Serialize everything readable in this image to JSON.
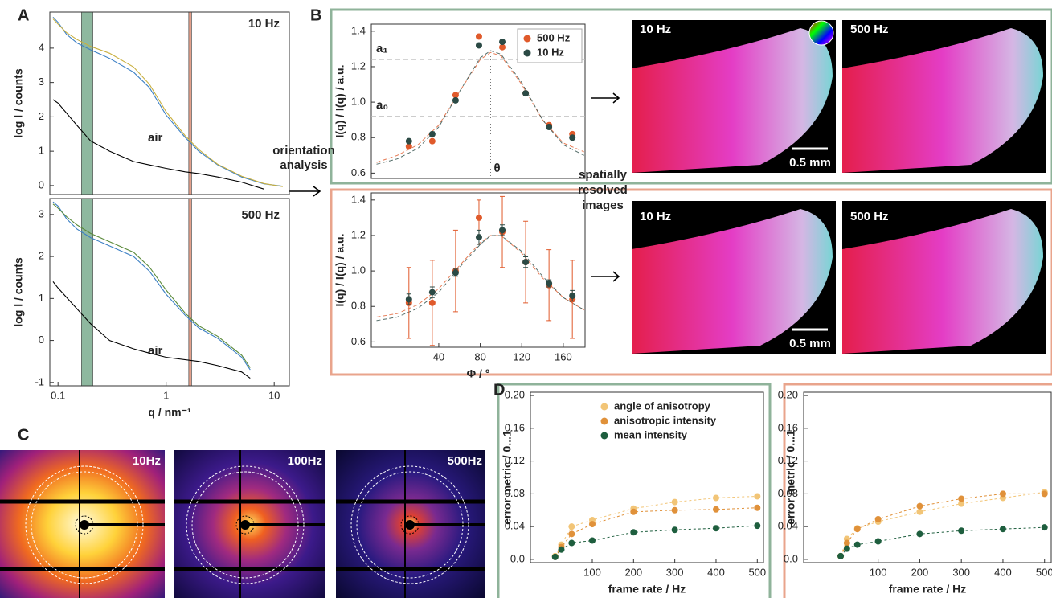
{
  "labels": [
    "A",
    "B",
    "C",
    "D"
  ],
  "panel_a": {
    "top_label": "10 Hz",
    "top_air": "air",
    "bottom_label": "500 Hz",
    "bottom_air": "air"
  },
  "panel_b": {
    "arrow_text": [
      "orientation",
      "analysis"
    ],
    "resolved_text": [
      "spatially",
      "resolved",
      "images"
    ],
    "images": [
      {
        "label": "10 Hz",
        "scale": "0.5 mm"
      },
      {
        "label": "500 Hz"
      },
      {
        "label": "10 Hz",
        "scale": "0.5 mm"
      },
      {
        "label": "500 Hz"
      }
    ]
  },
  "panel_c": {
    "images": [
      "10Hz",
      "100Hz",
      "500Hz"
    ]
  },
  "chart_data": [
    {
      "type": "line",
      "xscale": "log",
      "xlim": [
        0.084,
        13.8
      ],
      "ylim": [
        -0.26,
        5.05
      ],
      "yticks": [
        0,
        1,
        2,
        3,
        4
      ],
      "ylabel": "log I / counts",
      "spans": [
        {
          "range": [
            0.165,
            0.21
          ],
          "color": "#5e9a76"
        },
        {
          "range": [
            1.62,
            1.72
          ],
          "color": "#d9775a"
        }
      ],
      "series": [
        {
          "color": "#3b7fc4",
          "x": [
            0.09,
            0.1,
            0.12,
            0.15,
            0.2,
            0.3,
            0.5,
            0.7,
            1,
            1.5,
            2,
            3,
            5,
            8,
            12
          ],
          "values": [
            4.9,
            4.75,
            4.4,
            4.15,
            3.95,
            3.7,
            3.3,
            2.85,
            2.05,
            1.4,
            1.0,
            0.6,
            0.25,
            0.05,
            -0.02
          ]
        },
        {
          "color": "#c9b040",
          "x": [
            0.09,
            0.1,
            0.12,
            0.15,
            0.2,
            0.3,
            0.5,
            0.7,
            1,
            1.5,
            2,
            3,
            5,
            8,
            12
          ],
          "values": [
            4.85,
            4.7,
            4.45,
            4.25,
            4.05,
            3.85,
            3.45,
            2.95,
            2.15,
            1.45,
            1.05,
            0.62,
            0.27,
            0.06,
            -0.03
          ]
        },
        {
          "color": "#000000",
          "x": [
            0.09,
            0.1,
            0.15,
            0.2,
            0.3,
            0.5,
            0.7,
            1,
            1.5,
            2,
            3,
            5,
            8
          ],
          "values": [
            2.5,
            2.4,
            1.75,
            1.3,
            1.0,
            0.7,
            0.6,
            0.5,
            0.4,
            0.35,
            0.25,
            0.1,
            -0.1
          ]
        }
      ]
    },
    {
      "type": "line",
      "xscale": "log",
      "xlim": [
        0.084,
        13.8
      ],
      "ylim": [
        -1.08,
        3.38
      ],
      "yticks": [
        -1,
        0,
        1,
        2,
        3
      ],
      "xticks": [
        0.1,
        1,
        10
      ],
      "xlabel": "q / nm⁻¹",
      "ylabel": "log I / counts",
      "spans": [
        {
          "range": [
            0.165,
            0.21
          ],
          "color": "#5e9a76"
        },
        {
          "range": [
            1.62,
            1.72
          ],
          "color": "#d9775a"
        }
      ],
      "series": [
        {
          "color": "#3b7fc4",
          "x": [
            0.09,
            0.1,
            0.12,
            0.15,
            0.2,
            0.3,
            0.5,
            0.7,
            1,
            1.5,
            2,
            3,
            5,
            6
          ],
          "values": [
            3.3,
            3.2,
            2.9,
            2.65,
            2.45,
            2.25,
            2.0,
            1.65,
            1.1,
            0.6,
            0.3,
            0.05,
            -0.4,
            -0.7
          ]
        },
        {
          "color": "#5a8a3a",
          "x": [
            0.09,
            0.1,
            0.12,
            0.15,
            0.2,
            0.3,
            0.5,
            0.7,
            1,
            1.5,
            2,
            3,
            5,
            6
          ],
          "values": [
            3.25,
            3.15,
            2.95,
            2.75,
            2.55,
            2.35,
            2.1,
            1.75,
            1.2,
            0.65,
            0.35,
            0.1,
            -0.35,
            -0.65
          ]
        },
        {
          "color": "#000000",
          "x": [
            0.09,
            0.1,
            0.15,
            0.2,
            0.3,
            0.5,
            0.7,
            1,
            2,
            3,
            5,
            6
          ],
          "values": [
            1.4,
            1.25,
            0.75,
            0.4,
            0.0,
            -0.2,
            -0.3,
            -0.4,
            -0.5,
            -0.6,
            -0.75,
            -0.9
          ]
        }
      ]
    },
    {
      "type": "scatter",
      "xlim": [
        -25,
        181
      ],
      "ylim": [
        0.57,
        1.44
      ],
      "yticks": [
        0.6,
        0.8,
        {
          "value": 1,
          "label": "1.0"
        },
        1.2,
        1.4
      ],
      "ylabel": "I(q) / I(q) / a.u.",
      "legend": "upper right",
      "hlines": [
        {
          "value": 1.24,
          "label": "a₁"
        },
        {
          "value": 0.92,
          "label": "a₀"
        }
      ],
      "vlines": [
        {
          "value": 90,
          "label": "θ"
        }
      ],
      "series": [
        {
          "name": "500 Hz",
          "color": "#e05a2b",
          "x": [
            11.25,
            33.75,
            56.25,
            78.75,
            101.25,
            123.75,
            146.25,
            168.75
          ],
          "values": [
            0.75,
            0.78,
            1.04,
            1.37,
            1.31,
            1.05,
            0.87,
            0.82
          ],
          "errors": [
            0.01,
            0.01,
            0.01,
            0.01,
            0.01,
            0.01,
            0.01,
            0.01
          ]
        },
        {
          "name": "10 Hz",
          "color": "#2b4a45",
          "x": [
            11.25,
            33.75,
            56.25,
            78.75,
            101.25,
            123.75,
            146.25,
            168.75
          ],
          "values": [
            0.78,
            0.82,
            1.01,
            1.32,
            1.34,
            1.05,
            0.86,
            0.8
          ],
          "errors": [
            0.01,
            0.01,
            0.01,
            0.01,
            0.01,
            0.01,
            0.01,
            0.01
          ]
        }
      ],
      "fits": [
        {
          "color": "#e05a2b",
          "x": [
            -20,
            0,
            20,
            40,
            60,
            80,
            90,
            100,
            120,
            140,
            160,
            180
          ],
          "values": [
            0.66,
            0.7,
            0.76,
            0.87,
            1.06,
            1.24,
            1.28,
            1.26,
            1.1,
            0.9,
            0.77,
            0.72
          ]
        },
        {
          "color": "#2b4a45",
          "x": [
            -20,
            0,
            20,
            40,
            60,
            80,
            90,
            100,
            120,
            140,
            160,
            180
          ],
          "values": [
            0.65,
            0.68,
            0.74,
            0.86,
            1.06,
            1.25,
            1.29,
            1.27,
            1.11,
            0.9,
            0.76,
            0.7
          ]
        }
      ]
    },
    {
      "type": "scatter",
      "xlim": [
        -25,
        181
      ],
      "ylim": [
        0.57,
        1.44
      ],
      "yticks": [
        0.6,
        0.8,
        {
          "value": 1,
          "label": "1.0"
        },
        1.2,
        1.4
      ],
      "xticks": [
        40,
        80,
        120,
        160
      ],
      "xlabel": "Φ / °",
      "ylabel": "I(q) / I(q) / a.u.",
      "series": [
        {
          "color": "#e05a2b",
          "x": [
            11.25,
            33.75,
            56.25,
            78.75,
            101.25,
            123.75,
            146.25,
            168.75
          ],
          "values": [
            0.82,
            0.82,
            1.0,
            1.3,
            1.22,
            1.05,
            0.92,
            0.84
          ],
          "errors": [
            0.2,
            0.24,
            0.23,
            0.1,
            0.2,
            0.23,
            0.2,
            0.22
          ]
        },
        {
          "color": "#2b4a45",
          "x": [
            11.25,
            33.75,
            56.25,
            78.75,
            101.25,
            123.75,
            146.25,
            168.75
          ],
          "values": [
            0.84,
            0.88,
            0.99,
            1.19,
            1.23,
            1.05,
            0.93,
            0.86
          ],
          "errors": [
            0.03,
            0.03,
            0.02,
            0.04,
            0.03,
            0.03,
            0.02,
            0.03
          ]
        }
      ],
      "fits": [
        {
          "color": "#e05a2b",
          "x": [
            -20,
            0,
            20,
            40,
            60,
            80,
            90,
            100,
            120,
            140,
            160,
            180
          ],
          "values": [
            0.74,
            0.76,
            0.81,
            0.9,
            1.03,
            1.16,
            1.2,
            1.2,
            1.1,
            0.96,
            0.85,
            0.78
          ]
        },
        {
          "color": "#2b4a45",
          "x": [
            -20,
            0,
            20,
            40,
            60,
            80,
            90,
            100,
            120,
            140,
            160,
            180
          ],
          "values": [
            0.72,
            0.74,
            0.79,
            0.88,
            1.02,
            1.15,
            1.2,
            1.2,
            1.11,
            0.97,
            0.85,
            0.78
          ]
        }
      ]
    },
    {
      "type": "scatter",
      "connect": true,
      "xlim": [
        -50,
        515
      ],
      "ylim": [
        -0.004,
        0.204
      ],
      "yticks": [
        {
          "value": 0,
          "label": "0.0"
        },
        0.04,
        0.08,
        0.12,
        0.16,
        {
          "value": 0.2,
          "label": "0.20"
        }
      ],
      "xticks": [
        100,
        200,
        300,
        400,
        500
      ],
      "xlabel": "frame rate / Hz",
      "ylabel": "error metric / 0...1",
      "legend": "upper center",
      "series": [
        {
          "name": "angle of anisotropy",
          "color": "#f2c577",
          "x": [
            10,
            25,
            50,
            100,
            200,
            300,
            400,
            500
          ],
          "values": [
            0.004,
            0.018,
            0.04,
            0.048,
            0.062,
            0.07,
            0.075,
            0.077
          ]
        },
        {
          "name": "anisotropic intensity",
          "color": "#e0913a",
          "x": [
            10,
            25,
            50,
            100,
            200,
            300,
            400,
            500
          ],
          "values": [
            0.003,
            0.015,
            0.031,
            0.043,
            0.058,
            0.06,
            0.061,
            0.063
          ]
        },
        {
          "name": "mean intensity",
          "color": "#1e5e3e",
          "x": [
            10,
            25,
            50,
            100,
            200,
            300,
            400,
            500
          ],
          "values": [
            0.003,
            0.012,
            0.02,
            0.023,
            0.033,
            0.036,
            0.038,
            0.041
          ]
        }
      ]
    },
    {
      "type": "scatter",
      "connect": true,
      "xlim": [
        -79,
        516
      ],
      "ylim": [
        -0.004,
        0.204
      ],
      "yticks": [
        {
          "value": 0,
          "label": "0.0"
        },
        0.04,
        0.08,
        0.12,
        0.16,
        {
          "value": 0.2,
          "label": "0.20"
        }
      ],
      "xticks": [
        100,
        200,
        300,
        400,
        500
      ],
      "xlabel": "frame rate / Hz",
      "ylabel": "error metric / 0...1",
      "series": [
        {
          "color": "#f2c577",
          "x": [
            10,
            25,
            50,
            100,
            200,
            300,
            400,
            500
          ],
          "values": [
            0.004,
            0.025,
            0.038,
            0.046,
            0.058,
            0.068,
            0.075,
            0.082
          ]
        },
        {
          "color": "#e0913a",
          "x": [
            10,
            25,
            50,
            100,
            200,
            300,
            400,
            500
          ],
          "values": [
            0.004,
            0.02,
            0.037,
            0.049,
            0.065,
            0.074,
            0.08,
            0.08
          ]
        },
        {
          "color": "#1e5e3e",
          "x": [
            10,
            25,
            50,
            100,
            200,
            300,
            400,
            500
          ],
          "values": [
            0.004,
            0.013,
            0.018,
            0.022,
            0.031,
            0.035,
            0.037,
            0.039
          ]
        }
      ]
    }
  ]
}
